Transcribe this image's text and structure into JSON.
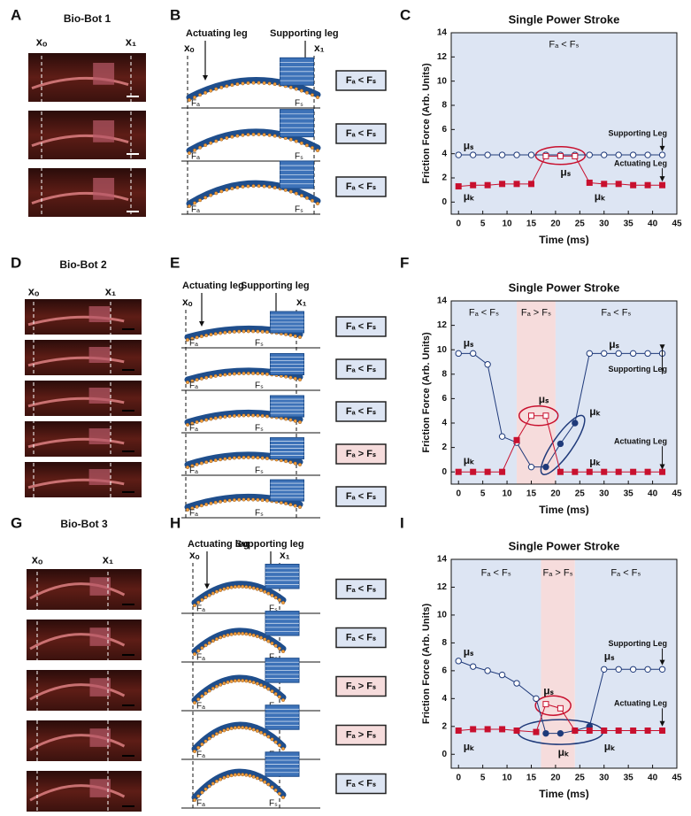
{
  "figure": {
    "panel_letters": [
      "A",
      "B",
      "C",
      "D",
      "E",
      "F",
      "G",
      "H",
      "I"
    ],
    "photos": [
      {
        "title": "Bio-Bot 1",
        "x0": "xₒ",
        "x1": "x₁"
      },
      {
        "title": "Bio-Bot 2",
        "x0": "xₒ",
        "x1": "x₁"
      },
      {
        "title": "Bio-Bot 3",
        "x0": "xₒ",
        "x1": "x₁"
      }
    ],
    "diagrams": [
      {
        "actuating": "Actuating leg",
        "supporting": "Supporting leg",
        "x0": "xₒ",
        "x1": "x₁",
        "frames": [
          {
            "fa": "Fₐ",
            "fs": "Fₛ",
            "condition": "Fₐ < Fₛ",
            "color": "#dde5f3"
          },
          {
            "fa": "Fₐ",
            "fs": "Fₛ",
            "condition": "Fₐ < Fₛ",
            "color": "#dde5f3"
          },
          {
            "fa": "Fₐ",
            "fs": "Fₛ",
            "condition": "Fₐ < Fₛ",
            "color": "#dde5f3"
          }
        ]
      },
      {
        "actuating": "Actuating leg",
        "supporting": "Supporting leg",
        "x0": "xₒ",
        "x1": "x₁",
        "frames": [
          {
            "fa": "Fₐ",
            "fs": "Fₛ",
            "condition": "Fₐ < Fₛ",
            "color": "#dde5f3"
          },
          {
            "fa": "Fₐ",
            "fs": "Fₛ",
            "condition": "Fₐ < Fₛ",
            "color": "#dde5f3"
          },
          {
            "fa": "Fₐ",
            "fs": "Fₛ",
            "condition": "Fₐ < Fₛ",
            "color": "#dde5f3"
          },
          {
            "fa": "Fₐ",
            "fs": "Fₛ",
            "condition": "Fₐ > Fₛ",
            "color": "#f6dcdc"
          },
          {
            "fa": "Fₐ",
            "fs": "Fₛ",
            "condition": "Fₐ < Fₛ",
            "color": "#dde5f3"
          }
        ]
      },
      {
        "actuating": "Actuating leg",
        "supporting": "Supporting leg",
        "x0": "xₒ",
        "x1": "x₁",
        "frames": [
          {
            "fa": "Fₐ",
            "fs": "Fₛ",
            "condition": "Fₐ < Fₛ",
            "color": "#dde5f3"
          },
          {
            "fa": "Fₐ",
            "fs": "Fₛ",
            "condition": "Fₐ < Fₛ",
            "color": "#dde5f3"
          },
          {
            "fa": "Fₐ",
            "fs": "Fₛ",
            "condition": "Fₐ > Fₛ",
            "color": "#f6dcdc"
          },
          {
            "fa": "Fₐ",
            "fs": "Fₛ",
            "condition": "Fₐ > Fₛ",
            "color": "#f6dcdc"
          },
          {
            "fa": "Fₐ",
            "fs": "Fₛ",
            "condition": "Fₐ < Fₛ",
            "color": "#dde5f3"
          }
        ]
      }
    ]
  },
  "chart_data": [
    {
      "type": "line",
      "title": "Single Power Stroke",
      "xlabel": "Time (ms)",
      "ylabel": "Friction Force (Arb. Units)",
      "xlim": [
        -1.5,
        45
      ],
      "ylim": [
        -1,
        14
      ],
      "xticks": [
        0,
        5,
        10,
        15,
        20,
        25,
        30,
        35,
        40,
        45
      ],
      "yticks": [
        0,
        2,
        4,
        6,
        8,
        10,
        12,
        14
      ],
      "regions": [
        {
          "x": [
            -1.5,
            45
          ],
          "color": "#dde5f3",
          "label": "Fₐ < Fₛ"
        }
      ],
      "x": [
        0,
        3,
        6,
        9,
        12,
        15,
        18,
        21,
        24,
        27,
        30,
        33,
        36,
        39,
        42
      ],
      "series": [
        {
          "name": "Supporting Leg",
          "color": "#1f3a7a",
          "marker": "circle",
          "values": [
            3.9,
            3.9,
            3.9,
            3.9,
            3.9,
            3.9,
            3.9,
            3.9,
            3.9,
            3.9,
            3.9,
            3.9,
            3.9,
            3.9,
            3.9
          ],
          "filled_points": []
        },
        {
          "name": "Actuating Leg",
          "color": "#c8102e",
          "marker": "square",
          "values": [
            1.3,
            1.4,
            1.4,
            1.5,
            1.5,
            1.5,
            3.8,
            3.8,
            3.8,
            1.6,
            1.5,
            1.5,
            1.4,
            1.4,
            1.4
          ],
          "open_points": [
            6,
            7,
            8
          ]
        }
      ],
      "annotations": [
        "μₛ",
        "μₛ",
        "μₖ",
        "μₖ"
      ]
    },
    {
      "type": "line",
      "title": "Single Power Stroke",
      "xlabel": "Time (ms)",
      "ylabel": "Friction Force (Arb. Units)",
      "xlim": [
        -1.5,
        45
      ],
      "ylim": [
        -1,
        14
      ],
      "xticks": [
        0,
        5,
        10,
        15,
        20,
        25,
        30,
        35,
        40,
        45
      ],
      "yticks": [
        0,
        2,
        4,
        6,
        8,
        10,
        12,
        14
      ],
      "regions": [
        {
          "x": [
            -1.5,
            12
          ],
          "color": "#dde5f3",
          "label": "Fₐ < Fₛ"
        },
        {
          "x": [
            12,
            20
          ],
          "color": "#f6dcdc",
          "label": "Fₐ > Fₛ"
        },
        {
          "x": [
            20,
            45
          ],
          "color": "#dde5f3",
          "label": "Fₐ < Fₛ"
        }
      ],
      "x": [
        0,
        3,
        6,
        9,
        12,
        15,
        18,
        21,
        24,
        27,
        30,
        33,
        36,
        39,
        42
      ],
      "series": [
        {
          "name": "Supporting Leg",
          "color": "#1f3a7a",
          "marker": "circle",
          "values": [
            9.7,
            9.7,
            8.8,
            2.9,
            2.4,
            0.4,
            0.4,
            2.3,
            4.0,
            9.7,
            9.7,
            9.7,
            9.7,
            9.7,
            9.7
          ],
          "filled_points": [
            6,
            7,
            8
          ]
        },
        {
          "name": "Actuating Leg",
          "color": "#c8102e",
          "marker": "square",
          "values": [
            0,
            0,
            0,
            0,
            2.6,
            4.6,
            4.6,
            0,
            0,
            0,
            0,
            0,
            0,
            0,
            0
          ],
          "open_points": [
            5,
            6
          ]
        }
      ],
      "annotations": [
        "μₛ",
        "μₛ",
        "μₛ",
        "μₖ",
        "μₖ",
        "μₖ"
      ]
    },
    {
      "type": "line",
      "title": "Single Power Stroke",
      "xlabel": "Time (ms)",
      "ylabel": "Friction Force (Arb. Units)",
      "xlim": [
        -1.5,
        45
      ],
      "ylim": [
        -1,
        14
      ],
      "xticks": [
        0,
        5,
        10,
        15,
        20,
        25,
        30,
        35,
        40,
        45
      ],
      "yticks": [
        0,
        2,
        4,
        6,
        8,
        10,
        12,
        14
      ],
      "regions": [
        {
          "x": [
            -1.5,
            17
          ],
          "color": "#dde5f3",
          "label": "Fₐ < Fₛ"
        },
        {
          "x": [
            17,
            24
          ],
          "color": "#f6dcdc",
          "label": "Fₐ > Fₛ"
        },
        {
          "x": [
            24,
            45
          ],
          "color": "#dde5f3",
          "label": "Fₐ < Fₛ"
        }
      ],
      "x": [
        0,
        3,
        6,
        9,
        12,
        16,
        18,
        21,
        24,
        27,
        30,
        33,
        36,
        39,
        42
      ],
      "series": [
        {
          "name": "Supporting Leg",
          "color": "#1f3a7a",
          "marker": "circle",
          "values": [
            6.7,
            6.3,
            6.0,
            5.7,
            5.1,
            4.0,
            1.5,
            1.5,
            1.7,
            2.0,
            6.1,
            6.1,
            6.1,
            6.1,
            6.1
          ],
          "filled_points": [
            6,
            7,
            8,
            9
          ]
        },
        {
          "name": "Actuating Leg",
          "color": "#c8102e",
          "marker": "square",
          "values": [
            1.7,
            1.8,
            1.8,
            1.8,
            1.7,
            1.6,
            3.6,
            3.3,
            1.7,
            1.7,
            1.7,
            1.7,
            1.7,
            1.7,
            1.7
          ],
          "open_points": [
            6,
            7
          ]
        }
      ],
      "annotations": [
        "μₛ",
        "μₛ",
        "μₛ",
        "μₖ",
        "μₖ",
        "μₖ"
      ]
    }
  ]
}
